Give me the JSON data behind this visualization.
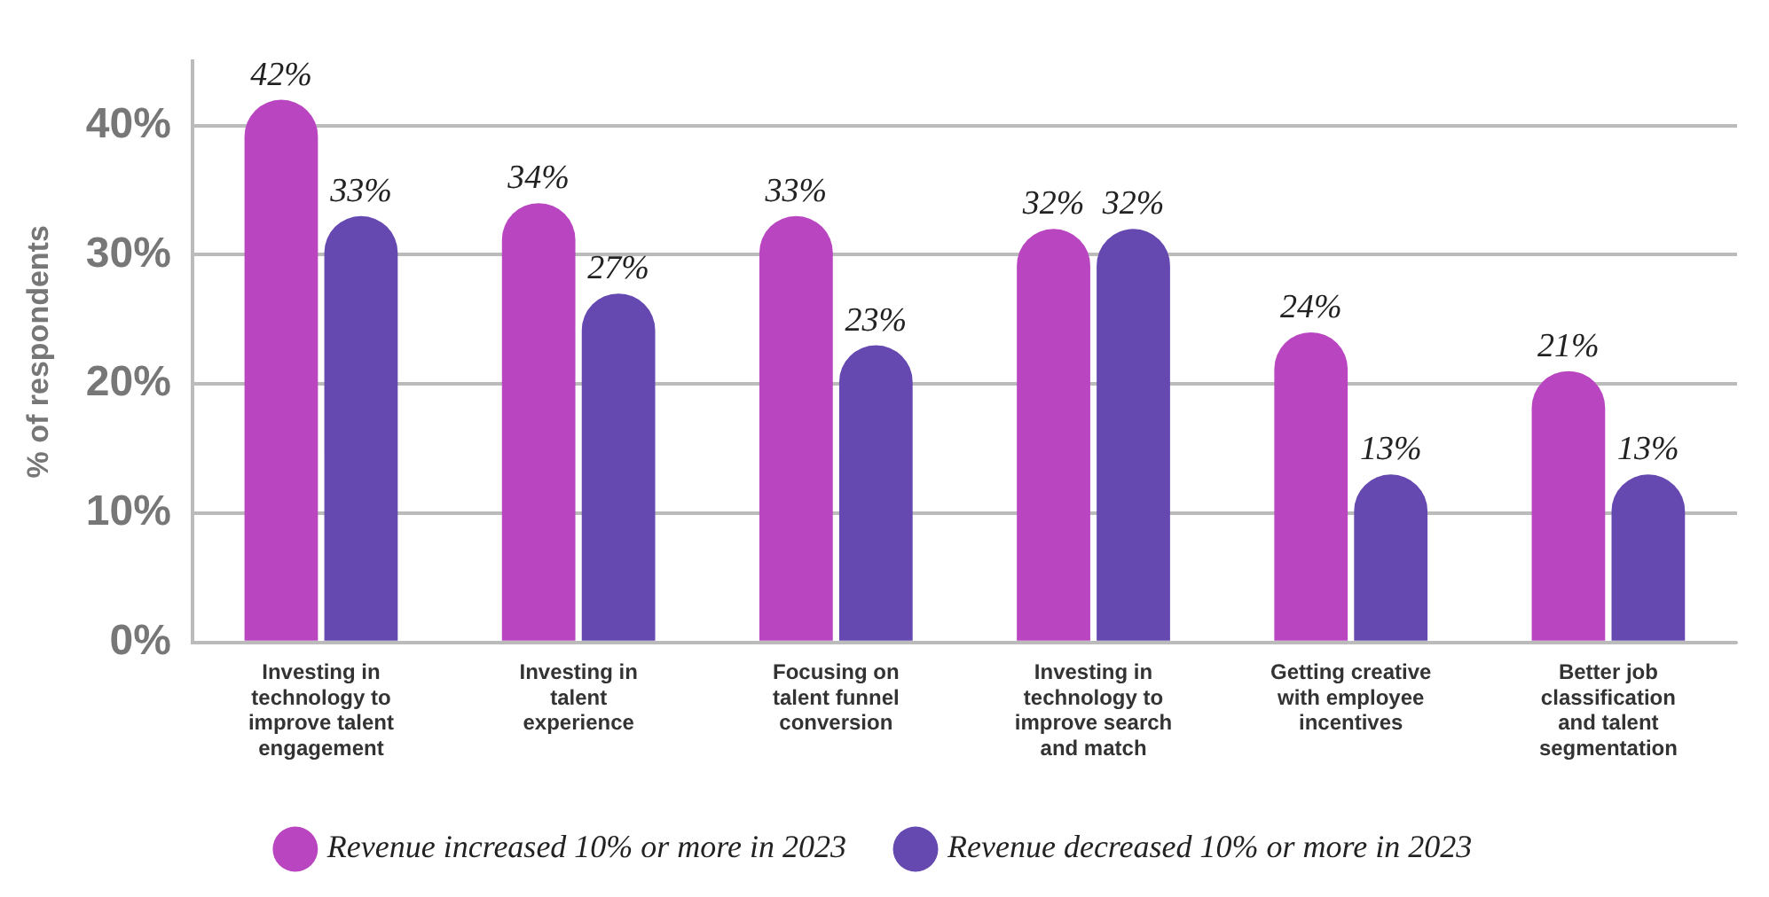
{
  "chart_data": {
    "type": "bar",
    "ylabel": "% of respondents",
    "categories": [
      "Investing in technology to improve talent engagement",
      "Investing in talent experience",
      "Focusing on talent funnel conversion",
      "Investing in technology to improve search and match",
      "Getting creative with employee incentives",
      "Better job classification and talent segmentation"
    ],
    "series": [
      {
        "name": "Revenue increased 10% or more in 2023",
        "color": "#b946c0",
        "values": [
          42,
          34,
          33,
          32,
          24,
          21
        ],
        "value_labels": [
          "42%",
          "34%",
          "33%",
          "32%",
          "24%",
          "21%"
        ]
      },
      {
        "name": "Revenue decreased 10% or more in 2023",
        "color": "#6548b0",
        "values": [
          33,
          27,
          23,
          32,
          13,
          13
        ],
        "value_labels": [
          "33%",
          "27%",
          "23%",
          "32%",
          "13%",
          "13%"
        ]
      }
    ],
    "ylim": [
      0,
      45
    ],
    "yticks": [
      {
        "value": 0,
        "label": "0%"
      },
      {
        "value": 10,
        "label": "10%"
      },
      {
        "value": 20,
        "label": "20%"
      },
      {
        "value": 30,
        "label": "30%"
      },
      {
        "value": 40,
        "label": "40%"
      }
    ],
    "grid": "y",
    "legend": "bottom"
  }
}
